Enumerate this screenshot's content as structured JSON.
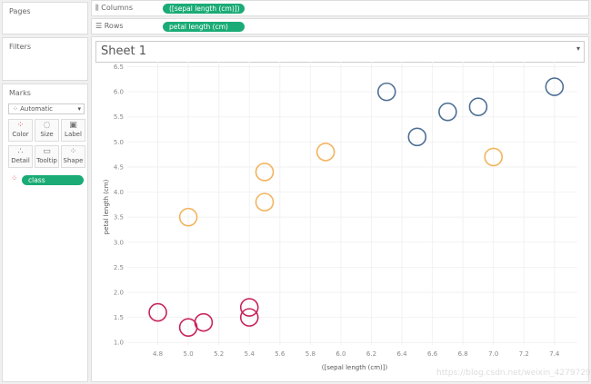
{
  "left": {
    "pages_label": "Pages",
    "filters_label": "Filters",
    "marks_label": "Marks",
    "mark_type": "Automatic",
    "cards": [
      {
        "label": "Color",
        "icon": "color-dots-icon"
      },
      {
        "label": "Size",
        "icon": "size-icon"
      },
      {
        "label": "Label",
        "icon": "label-icon"
      },
      {
        "label": "Detail",
        "icon": "detail-icon"
      },
      {
        "label": "Tooltip",
        "icon": "tooltip-icon"
      },
      {
        "label": "Shape",
        "icon": "shape-icon"
      }
    ],
    "color_field": "class"
  },
  "shelves": {
    "columns_label": "Columns",
    "columns_pill": "([sepal length (cm)])",
    "rows_label": "Rows",
    "rows_pill": "petal length (cm)"
  },
  "sheet": {
    "title": "Sheet 1"
  },
  "watermark": "https://blog.csdn.net/weixin_42797297",
  "chart_data": {
    "type": "scatter",
    "xlabel": "([sepal length (cm)])",
    "ylabel": "petal length (cm)",
    "xlim": [
      4.6,
      7.55
    ],
    "ylim": [
      0.95,
      6.6
    ],
    "xticks": [
      "4.8",
      "5.0",
      "5.2",
      "5.4",
      "5.6",
      "5.8",
      "6.0",
      "6.2",
      "6.4",
      "6.6",
      "6.8",
      "7.0",
      "7.2",
      "7.4"
    ],
    "yticks": [
      "1.0",
      "1.5",
      "2.0",
      "2.5",
      "3.0",
      "3.5",
      "4.0",
      "4.5",
      "5.0",
      "5.5",
      "6.0",
      "6.5"
    ],
    "grid": true,
    "marker": "open-circle",
    "series": [
      {
        "color": "#c8235a",
        "points": [
          [
            4.8,
            1.6
          ],
          [
            5.0,
            1.3
          ],
          [
            5.1,
            1.4
          ],
          [
            5.4,
            1.7
          ],
          [
            5.4,
            1.5
          ]
        ]
      },
      {
        "color": "#f2b45e",
        "points": [
          [
            5.0,
            3.5
          ],
          [
            5.5,
            4.4
          ],
          [
            5.5,
            3.8
          ],
          [
            5.9,
            4.8
          ],
          [
            7.0,
            4.7
          ]
        ]
      },
      {
        "color": "#4e7096",
        "points": [
          [
            6.3,
            6.0
          ],
          [
            6.5,
            5.1
          ],
          [
            6.7,
            5.6
          ],
          [
            6.9,
            5.7
          ],
          [
            7.4,
            6.1
          ]
        ]
      }
    ]
  }
}
